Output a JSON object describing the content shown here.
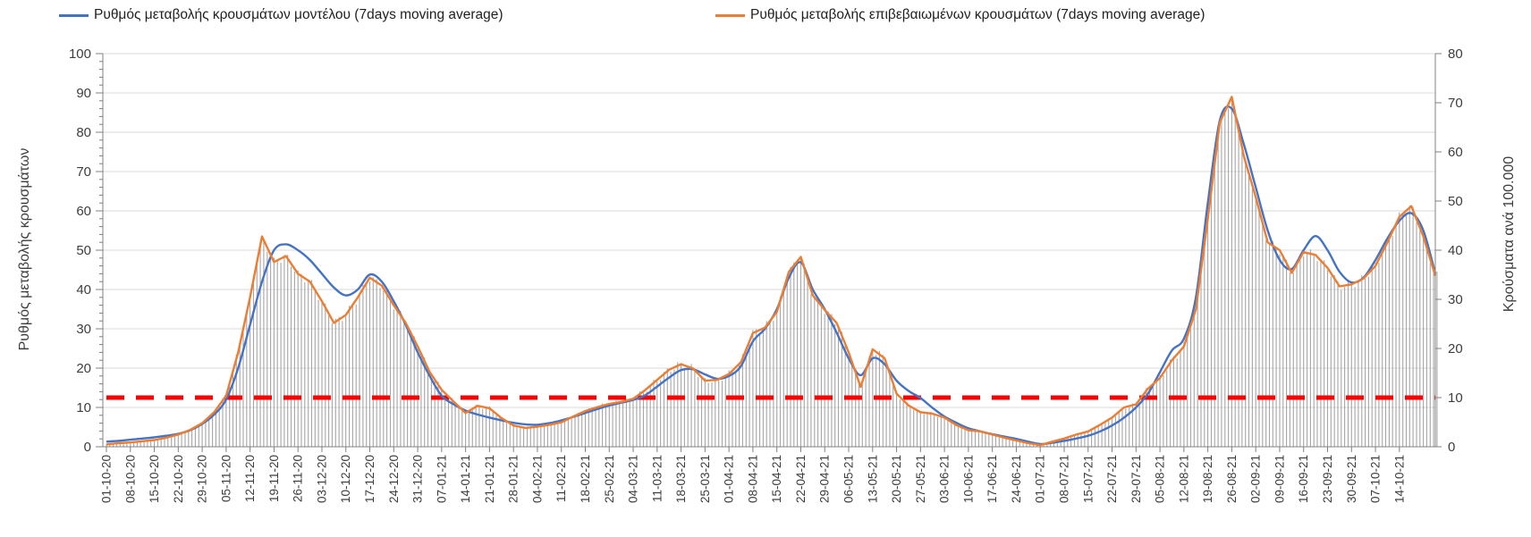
{
  "legend": {
    "model_label": "Ρυθμός μεταβολής κρουσμάτων μοντέλου (7days moving average)",
    "confirmed_label": "Ρυθμός μεταβολής επιβεβαιωμένων κρουσμάτων (7days moving average)"
  },
  "chart_data": {
    "type": "line",
    "title": "",
    "legend_position": "top",
    "grid": "horizontal",
    "background": "#FFFFFF",
    "left_axis": {
      "title": "Ρυθμός μεταβολής κρουσμάτων",
      "min": 0,
      "max": 100,
      "major_step": 10,
      "minor_tick_step": 2,
      "tick_labels": [
        0,
        10,
        20,
        30,
        40,
        50,
        60,
        70,
        80,
        90,
        100
      ]
    },
    "right_axis": {
      "title": "Κρούσματα ανά 100.000",
      "min": 0,
      "max": 80,
      "major_step": 10,
      "tick_labels": [
        0,
        10,
        20,
        30,
        40,
        50,
        60,
        70,
        80
      ]
    },
    "x_axis": {
      "tick_label_rotation_deg": -90,
      "label_interval_weeks": 1,
      "tick_labels": [
        "01-10-20",
        "08-10-20",
        "15-10-20",
        "22-10-20",
        "29-10-20",
        "05-11-20",
        "12-11-20",
        "19-11-20",
        "26-11-20",
        "03-12-20",
        "10-12-20",
        "17-12-20",
        "24-12-20",
        "31-12-20",
        "07-01-21",
        "14-01-21",
        "21-01-21",
        "28-01-21",
        "04-02-21",
        "11-02-21",
        "18-02-21",
        "25-02-21",
        "04-03-21",
        "11-03-21",
        "18-03-21",
        "25-03-21",
        "01-04-21",
        "08-04-21",
        "15-04-21",
        "22-04-21",
        "29-04-21",
        "06-05-21",
        "13-05-21",
        "20-05-21",
        "27-05-21",
        "03-06-21",
        "10-06-21",
        "17-06-21",
        "24-06-21",
        "01-07-21",
        "08-07-21",
        "15-07-21",
        "22-07-21",
        "29-07-21",
        "05-08-21",
        "12-08-21",
        "19-08-21",
        "26-08-21",
        "02-09-21",
        "09-09-21",
        "16-09-21",
        "23-09-21",
        "30-09-21",
        "07-10-21",
        "14-10-21"
      ]
    },
    "sample_step_weeks": 0.5,
    "x_extent_weeks": 55.5,
    "series": [
      {
        "name": "Ρυθμός μεταβολής κρουσμάτων μοντέλου (7days moving average)",
        "color": "#4472C4",
        "axis": "left",
        "style": "smooth",
        "values": [
          1.3,
          1.5,
          1.8,
          2.1,
          2.4,
          2.8,
          3.3,
          4.2,
          5.8,
          8.2,
          12,
          20,
          31,
          42,
          50,
          51.5,
          50,
          47.5,
          44,
          40.5,
          38.5,
          40,
          43.8,
          42,
          37,
          31,
          24,
          18,
          13,
          10.8,
          9.2,
          8.2,
          7.4,
          6.7,
          6.1,
          5.7,
          5.6,
          6,
          6.7,
          7.6,
          8.6,
          9.6,
          10.5,
          11.2,
          11.9,
          13.1,
          15.3,
          17.6,
          19.5,
          19.7,
          18.4,
          17.3,
          18,
          20.5,
          26.8,
          30,
          35,
          43,
          46.9,
          40,
          35,
          29,
          22.5,
          18.2,
          22.5,
          21,
          16.8,
          14.2,
          12.4,
          9.9,
          7.7,
          6.1,
          4.7,
          3.9,
          3.2,
          2.6,
          2,
          1.3,
          0.7,
          1,
          1.5,
          2.1,
          2.8,
          3.9,
          5.4,
          7.4,
          10,
          13.5,
          19,
          24.5,
          27.5,
          38,
          62,
          83,
          86,
          77,
          66,
          55,
          47.5,
          45.2,
          50,
          53.6,
          50,
          44.5,
          41.8,
          43,
          47.5,
          53,
          57.5,
          59.4,
          55,
          44
        ]
      },
      {
        "name": "Ρυθμός μεταβολής επιβεβαιωμένων κρουσμάτων (7days moving average)",
        "color": "#ED7D31",
        "axis": "left",
        "style": "straight",
        "values": [
          0.6,
          0.9,
          1.1,
          1.4,
          1.7,
          2.3,
          3.1,
          4.3,
          6,
          8.8,
          13,
          24,
          38,
          53.5,
          47,
          48.5,
          44,
          42,
          37,
          31.5,
          33.5,
          38,
          43,
          41,
          36,
          31.5,
          25.5,
          19,
          14.5,
          11.5,
          8.6,
          10.4,
          9.8,
          7.3,
          5.4,
          4.8,
          5.1,
          5.6,
          6.2,
          7.7,
          9.1,
          10.1,
          10.9,
          11.4,
          12.2,
          14.4,
          17,
          19.6,
          21,
          19.9,
          16.8,
          17,
          18.5,
          21.5,
          28.9,
          30.3,
          34.3,
          44.5,
          48.3,
          38.5,
          34.8,
          31.5,
          24,
          15.2,
          24.8,
          22.5,
          13.5,
          10.5,
          8.8,
          8.4,
          7.4,
          5.5,
          4.2,
          3.9,
          3.1,
          2.3,
          1.6,
          0.9,
          0.4,
          1.3,
          2.1,
          3.1,
          3.9,
          5.6,
          7.4,
          10,
          10.8,
          14.8,
          17.5,
          22,
          25.5,
          35,
          58,
          82.5,
          89,
          74,
          63.5,
          52,
          50,
          44.2,
          49.5,
          48.8,
          45.5,
          40.8,
          41.3,
          42.8,
          46,
          52,
          58.5,
          61.2,
          53.5,
          43.5
        ]
      }
    ],
    "bars": {
      "name": "daily-cases-bars",
      "color": "#A6A6A6",
      "follows_series": 1,
      "per_week": 7
    },
    "threshold_line": {
      "value_left_axis": 12.5,
      "value_right_axis": 10,
      "color": "#FF0000",
      "style": "dashed"
    },
    "colors": {
      "grid": "#D9D9D9",
      "axis": "#808080",
      "tick_text": "#3d3d3d"
    }
  }
}
